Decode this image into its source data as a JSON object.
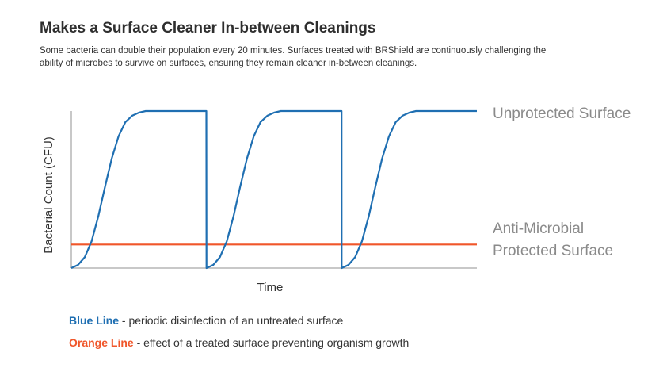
{
  "header": {
    "title": "Makes a Surface Cleaner In-between Cleanings",
    "description": "Some bacteria can double their population every 20 minutes. Surfaces treated with BRShield are continuously challenging the ability of microbes to survive on surfaces, ensuring they remain cleaner in-between cleanings."
  },
  "legend": {
    "blue_key": "Blue Line",
    "blue_text": " - periodic disinfection of an untreated surface",
    "orange_key": "Orange Line",
    "orange_text": " - effect of a treated surface preventing organism growth"
  },
  "colors": {
    "blue": "#1f6fb2",
    "orange": "#f0562a",
    "axis": "#b5b5b5",
    "label": "#8a8a8a"
  },
  "chart_data": {
    "type": "line",
    "xlabel": "Time",
    "ylabel": "Bacterial Count (CFU)",
    "xlim": [
      0,
      3
    ],
    "ylim": [
      0,
      1
    ],
    "grid": false,
    "series": [
      {
        "name": "Unprotected Surface",
        "color": "#1f6fb2",
        "description": "periodic disinfection of an untreated surface",
        "x": [
          0,
          0.05,
          0.1,
          0.15,
          0.2,
          0.25,
          0.3,
          0.35,
          0.4,
          0.45,
          0.5,
          0.55,
          0.6,
          0.7,
          0.8,
          0.9,
          0.999,
          1.0,
          1.05,
          1.1,
          1.15,
          1.2,
          1.25,
          1.3,
          1.35,
          1.4,
          1.45,
          1.5,
          1.55,
          1.6,
          1.7,
          1.8,
          1.9,
          1.999,
          2.0,
          2.05,
          2.1,
          2.15,
          2.2,
          2.25,
          2.3,
          2.35,
          2.4,
          2.45,
          2.5,
          2.55,
          2.6,
          2.7,
          2.8,
          2.9,
          3.0
        ],
        "y": [
          0.0,
          0.02,
          0.07,
          0.17,
          0.33,
          0.52,
          0.7,
          0.84,
          0.93,
          0.97,
          0.99,
          1.0,
          1.0,
          1.0,
          1.0,
          1.0,
          1.0,
          0.0,
          0.02,
          0.07,
          0.17,
          0.33,
          0.52,
          0.7,
          0.84,
          0.93,
          0.97,
          0.99,
          1.0,
          1.0,
          1.0,
          1.0,
          1.0,
          1.0,
          0.0,
          0.02,
          0.07,
          0.17,
          0.33,
          0.52,
          0.7,
          0.84,
          0.93,
          0.97,
          0.99,
          1.0,
          1.0,
          1.0,
          1.0,
          1.0,
          1.0
        ]
      },
      {
        "name": "Anti-Microbial Protected Surface",
        "color": "#f0562a",
        "description": "effect of a treated surface preventing organism growth",
        "x": [
          0,
          3
        ],
        "y": [
          0.15,
          0.15
        ]
      }
    ],
    "line_labels": [
      {
        "series": 0,
        "lines": [
          "Unprotected Surface"
        ]
      },
      {
        "series": 1,
        "lines": [
          "Anti-Microbial",
          "Protected Surface"
        ]
      }
    ]
  }
}
